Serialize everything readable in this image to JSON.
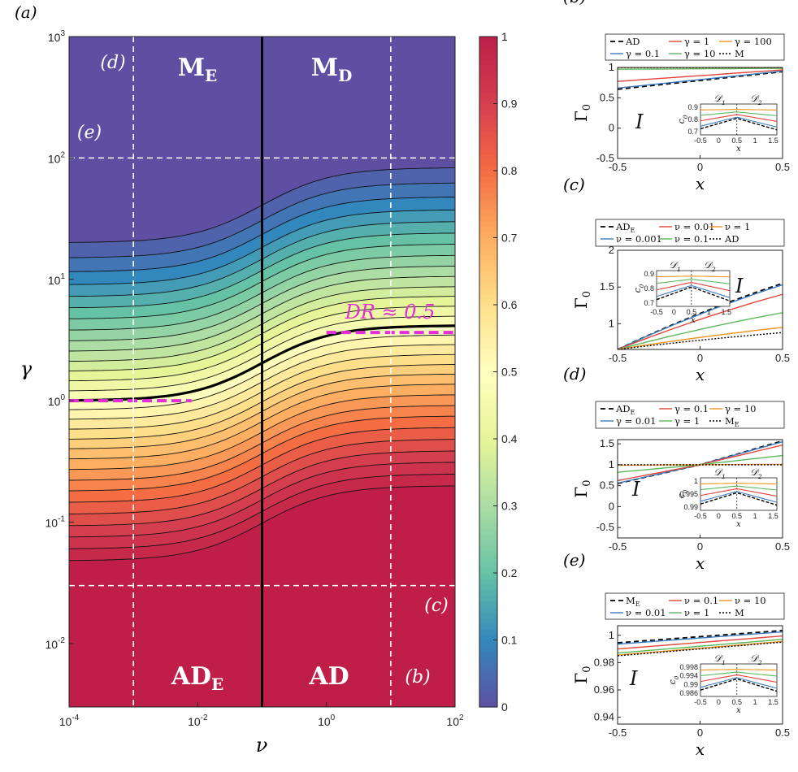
{
  "chart_data": [
    {
      "panel": "a",
      "type": "heatmap",
      "panel_label": "(a)",
      "xlabel": "ν",
      "ylabel": "γ",
      "x_scale": "log",
      "y_scale": "log",
      "xlim": [
        0.0001,
        100
      ],
      "ylim": [
        0.003,
        1000
      ],
      "x_ticks": [
        "10-4",
        "10-2",
        "100",
        "102"
      ],
      "y_ticks": [
        "10-2",
        "10-1",
        "100",
        "101",
        "102",
        "103"
      ],
      "colorbar": {
        "min": 0,
        "max": 1,
        "ticks": [
          "0",
          "0.1",
          "0.2",
          "0.3",
          "0.4",
          "0.5",
          "0.6",
          "0.7",
          "0.8",
          "0.9",
          "1"
        ]
      },
      "contour_gamma_left": [
        0.048,
        0.06,
        0.075,
        0.093,
        0.116,
        0.145,
        0.18,
        0.22,
        0.27,
        0.33,
        0.4,
        0.48,
        0.58,
        0.7,
        0.84,
        1.0,
        1.2,
        1.45,
        1.75,
        2.1,
        2.55,
        3.1,
        3.8,
        4.7,
        5.8,
        7.2,
        9.0,
        11.5,
        15.0,
        20.0
      ],
      "contour_shift_decades": 0.62,
      "transition_nu": 0.1,
      "dr_half_left_gamma": 1.0,
      "dr_half_right_gamma": 3.65,
      "dr_label": "DR ≈ 0.5",
      "vertical_line_nu": 0.1,
      "dashed_v_nu": [
        0.001,
        10
      ],
      "dashed_h_gamma": [
        100,
        0.03
      ],
      "regions": [
        {
          "main": "M",
          "sub": "E"
        },
        {
          "main": "M",
          "sub": "D"
        },
        {
          "main": "AD",
          "sub": "E"
        },
        {
          "main": "AD",
          "sub": ""
        }
      ],
      "corner_labels": [
        "(d)",
        "(e)",
        "(c)",
        "(b)"
      ]
    },
    {
      "panel": "b",
      "type": "line",
      "panel_label": "(b)",
      "xlabel": "x",
      "ylabel": "Γ0",
      "xlim": [
        -0.5,
        0.5
      ],
      "ylim": [
        -0.5,
        1.0
      ],
      "x_ticks": [
        "-0.5",
        "0",
        "0.5"
      ],
      "y_ticks": [
        "-0.5",
        "0",
        "0.5",
        "1"
      ],
      "legend": [
        "AD",
        "γ = 1",
        "γ = 100",
        "γ = 0.1",
        "γ = 10",
        "M"
      ],
      "series": [
        {
          "name": "AD",
          "y": [
            0.64,
            0.93
          ]
        },
        {
          "name": "γ = 0.1",
          "y": [
            0.66,
            0.94
          ]
        },
        {
          "name": "γ = 1",
          "y": [
            0.77,
            0.96
          ]
        },
        {
          "name": "γ = 10",
          "y": [
            0.97,
            0.985
          ]
        },
        {
          "name": "γ = 100",
          "y": [
            1.0,
            1.0
          ]
        },
        {
          "name": "M",
          "y": [
            1.0,
            1.0
          ]
        }
      ],
      "region_label": "I",
      "inset": {
        "ylabel": "c0",
        "xlabel": "x",
        "x_ticks": [
          "-0.5",
          "0",
          "0.5",
          "1",
          "1.5"
        ],
        "y_ticks": [
          "0.7",
          "0.8",
          "0.9"
        ],
        "domains": [
          "D1",
          "D2"
        ]
      }
    },
    {
      "panel": "c",
      "type": "line",
      "panel_label": "(c)",
      "xlabel": "x",
      "ylabel": "Γ0",
      "xlim": [
        -0.5,
        0.5
      ],
      "ylim": [
        0.65,
        2.0
      ],
      "x_ticks": [
        "-0.5",
        "0",
        "0.5"
      ],
      "y_ticks": [
        "1",
        "1.5",
        "2"
      ],
      "legend": [
        "AD_E",
        "ν = 0.01",
        "ν = 1",
        "ν = 0.001",
        "ν = 0.1",
        "AD"
      ],
      "series": [
        {
          "name": "AD_E",
          "y": [
            0.65,
            1.55
          ]
        },
        {
          "name": "ν = 0.001",
          "y": [
            0.65,
            1.53
          ]
        },
        {
          "name": "ν = 0.01",
          "y": [
            0.65,
            1.4
          ]
        },
        {
          "name": "ν = 0.1",
          "y": [
            0.65,
            1.15
          ]
        },
        {
          "name": "ν = 1",
          "y": [
            0.65,
            0.95
          ]
        },
        {
          "name": "AD",
          "y": [
            0.65,
            0.88
          ]
        }
      ],
      "region_label": "I",
      "inset": {
        "ylabel": "c0",
        "xlabel": "x",
        "x_ticks": [
          "-0.5",
          "0",
          "0.5",
          "1",
          "1.5"
        ],
        "y_ticks": [
          "0.7",
          "0.8",
          "0.9"
        ],
        "domains": [
          "D1",
          "D2"
        ]
      }
    },
    {
      "panel": "d",
      "type": "line",
      "panel_label": "(d)",
      "xlabel": "x",
      "ylabel": "Γ0",
      "xlim": [
        -0.5,
        0.5
      ],
      "ylim": [
        -0.75,
        1.6
      ],
      "x_ticks": [
        "-0.5",
        "0",
        "0.5"
      ],
      "y_ticks": [
        "-0.5",
        "0",
        "0.5",
        "1",
        "1.5"
      ],
      "legend": [
        "AD_E",
        "γ = 0.1",
        "γ = 10",
        "γ = 0.01",
        "γ = 1",
        "M_E"
      ],
      "series": [
        {
          "name": "AD_E",
          "y": [
            0.55,
            1.0,
            1.57
          ]
        },
        {
          "name": "γ = 0.01",
          "y": [
            0.56,
            1.0,
            1.55
          ]
        },
        {
          "name": "γ = 0.1",
          "y": [
            0.62,
            1.0,
            1.47
          ]
        },
        {
          "name": "γ = 1",
          "y": [
            0.82,
            1.0,
            1.22
          ]
        },
        {
          "name": "γ = 10",
          "y": [
            0.99,
            1.0,
            1.01
          ]
        },
        {
          "name": "M_E",
          "y": [
            1.0,
            1.0,
            1.0
          ]
        }
      ],
      "region_label": "I",
      "inset": {
        "ylabel": "c0",
        "xlabel": "x",
        "x_ticks": [
          "-0.5",
          "0",
          "0.5",
          "1",
          "1.5"
        ],
        "y_ticks": [
          "0.99",
          "0.995",
          "1"
        ],
        "domains": [
          "D1",
          "D2"
        ]
      }
    },
    {
      "panel": "e",
      "type": "line",
      "panel_label": "(e)",
      "xlabel": "x",
      "ylabel": "Γ0",
      "xlim": [
        -0.5,
        0.5
      ],
      "ylim": [
        0.935,
        1.007
      ],
      "x_ticks": [
        "-0.5",
        "0",
        "0.5"
      ],
      "y_ticks": [
        "0.94",
        "0.96",
        "0.98",
        "1"
      ],
      "legend": [
        "M_E",
        "ν = 0.1",
        "ν = 10",
        "ν = 0.01",
        "ν = 1",
        "M"
      ],
      "series": [
        {
          "name": "M_E",
          "y": [
            0.9945,
            1.0035
          ]
        },
        {
          "name": "ν = 0.01",
          "y": [
            0.9935,
            1.0025
          ]
        },
        {
          "name": "ν = 0.1",
          "y": [
            0.99,
            0.9995
          ]
        },
        {
          "name": "ν = 1",
          "y": [
            0.987,
            0.997
          ]
        },
        {
          "name": "ν = 10",
          "y": [
            0.9855,
            0.9955
          ]
        },
        {
          "name": "M",
          "y": [
            0.985,
            0.995
          ]
        }
      ],
      "region_label": "I",
      "inset": {
        "ylabel": "c0",
        "xlabel": "x",
        "x_ticks": [
          "-0.5",
          "0",
          "0.5",
          "1",
          "1.5"
        ],
        "y_ticks": [
          "0.986",
          "0.99",
          "0.994",
          "0.998"
        ],
        "domains": [
          "D1",
          "D2"
        ]
      }
    }
  ]
}
